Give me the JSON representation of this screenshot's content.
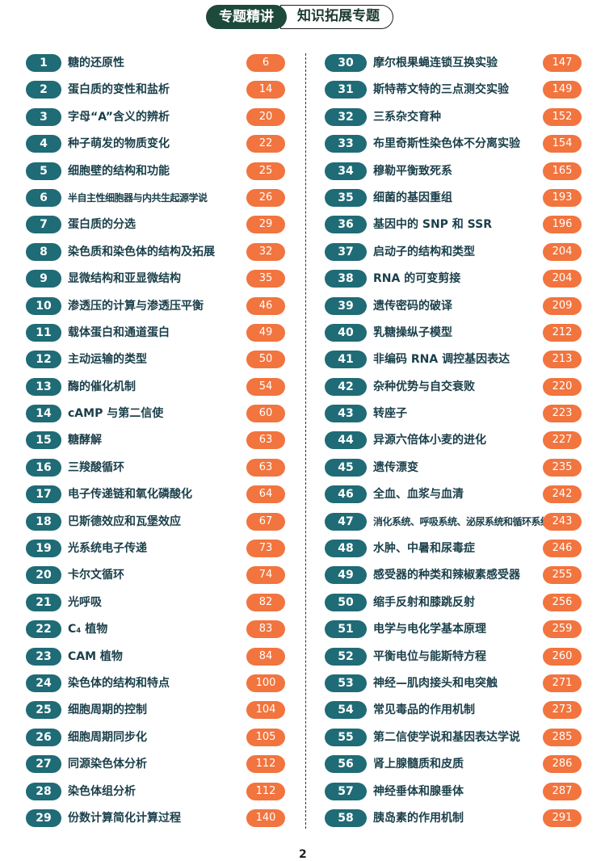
{
  "header": {
    "section": "专题精讲",
    "subtitle": "知识拓展专题"
  },
  "colors": {
    "number_badge": "#1f6b76",
    "page_badge": "#f2743e",
    "header_dark": "#1d4a3a"
  },
  "left": [
    {
      "n": "1",
      "title": "糖的还原性",
      "page": "6"
    },
    {
      "n": "2",
      "title": "蛋白质的变性和盐析",
      "page": "14"
    },
    {
      "n": "3",
      "title": "字母“A”含义的辨析",
      "page": "20"
    },
    {
      "n": "4",
      "title": "种子萌发的物质变化",
      "page": "22"
    },
    {
      "n": "5",
      "title": "细胞壁的结构和功能",
      "page": "25"
    },
    {
      "n": "6",
      "title": "半自主性细胞器与内共生起源学说",
      "page": "26"
    },
    {
      "n": "7",
      "title": "蛋白质的分选",
      "page": "29"
    },
    {
      "n": "8",
      "title": "染色质和染色体的结构及拓展",
      "page": "32"
    },
    {
      "n": "9",
      "title": "显微结构和亚显微结构",
      "page": "35"
    },
    {
      "n": "10",
      "title": "渗透压的计算与渗透压平衡",
      "page": "46"
    },
    {
      "n": "11",
      "title": "载体蛋白和通道蛋白",
      "page": "49"
    },
    {
      "n": "12",
      "title": "主动运输的类型",
      "page": "50"
    },
    {
      "n": "13",
      "title": "酶的催化机制",
      "page": "54"
    },
    {
      "n": "14",
      "title": "cAMP 与第二信使",
      "page": "60"
    },
    {
      "n": "15",
      "title": "糖酵解",
      "page": "63"
    },
    {
      "n": "16",
      "title": "三羧酸循环",
      "page": "63"
    },
    {
      "n": "17",
      "title": "电子传递链和氧化磷酸化",
      "page": "64"
    },
    {
      "n": "18",
      "title": "巴斯德效应和瓦堡效应",
      "page": "67"
    },
    {
      "n": "19",
      "title": "光系统电子传递",
      "page": "73"
    },
    {
      "n": "20",
      "title": "卡尔文循环",
      "page": "74"
    },
    {
      "n": "21",
      "title": "光呼吸",
      "page": "82"
    },
    {
      "n": "22",
      "title": "C₄ 植物",
      "page": "83"
    },
    {
      "n": "23",
      "title": "CAM 植物",
      "page": "84"
    },
    {
      "n": "24",
      "title": "染色体的结构和特点",
      "page": "100"
    },
    {
      "n": "25",
      "title": "细胞周期的控制",
      "page": "104"
    },
    {
      "n": "26",
      "title": "细胞周期同步化",
      "page": "105"
    },
    {
      "n": "27",
      "title": "同源染色体分析",
      "page": "112"
    },
    {
      "n": "28",
      "title": "染色体组分析",
      "page": "112"
    },
    {
      "n": "29",
      "title": "份数计算简化计算过程",
      "page": "140"
    }
  ],
  "right": [
    {
      "n": "30",
      "title": "摩尔根果蝇连锁互换实验",
      "page": "147"
    },
    {
      "n": "31",
      "title": "斯特蒂文特的三点测交实验",
      "page": "149"
    },
    {
      "n": "32",
      "title": "三系杂交育种",
      "page": "152"
    },
    {
      "n": "33",
      "title": "布里奇斯性染色体不分离实验",
      "page": "154"
    },
    {
      "n": "34",
      "title": "穆勒平衡致死系",
      "page": "165"
    },
    {
      "n": "35",
      "title": "细菌的基因重组",
      "page": "193"
    },
    {
      "n": "36",
      "title": "基因中的 SNP 和 SSR",
      "page": "196"
    },
    {
      "n": "37",
      "title": "启动子的结构和类型",
      "page": "204"
    },
    {
      "n": "38",
      "title": "RNA 的可变剪接",
      "page": "204"
    },
    {
      "n": "39",
      "title": "遗传密码的破译",
      "page": "209"
    },
    {
      "n": "40",
      "title": "乳糖操纵子模型",
      "page": "212"
    },
    {
      "n": "41",
      "title": "非编码 RNA 调控基因表达",
      "page": "213"
    },
    {
      "n": "42",
      "title": "杂种优势与自交衰败",
      "page": "220"
    },
    {
      "n": "43",
      "title": "转座子",
      "page": "223"
    },
    {
      "n": "44",
      "title": "异源六倍体小麦的进化",
      "page": "227"
    },
    {
      "n": "45",
      "title": "遗传漂变",
      "page": "235"
    },
    {
      "n": "46",
      "title": "全血、血浆与血清",
      "page": "242"
    },
    {
      "n": "47",
      "title": "消化系统、呼吸系统、泌尿系统和循环系统",
      "page": "243"
    },
    {
      "n": "48",
      "title": "水肿、中暑和尿毒症",
      "page": "246"
    },
    {
      "n": "49",
      "title": "感受器的种类和辣椒素感受器",
      "page": "255"
    },
    {
      "n": "50",
      "title": "缩手反射和膝跳反射",
      "page": "256"
    },
    {
      "n": "51",
      "title": "电学与电化学基本原理",
      "page": "259"
    },
    {
      "n": "52",
      "title": "平衡电位与能斯特方程",
      "page": "260"
    },
    {
      "n": "53",
      "title": "神经—肌肉接头和电突触",
      "page": "271"
    },
    {
      "n": "54",
      "title": "常见毒品的作用机制",
      "page": "273"
    },
    {
      "n": "55",
      "title": "第二信使学说和基因表达学说",
      "page": "285"
    },
    {
      "n": "56",
      "title": "肾上腺髓质和皮质",
      "page": "286"
    },
    {
      "n": "57",
      "title": "神经垂体和腺垂体",
      "page": "287"
    },
    {
      "n": "58",
      "title": "胰岛素的作用机制",
      "page": "291"
    }
  ],
  "footer": {
    "page_number": "2"
  }
}
